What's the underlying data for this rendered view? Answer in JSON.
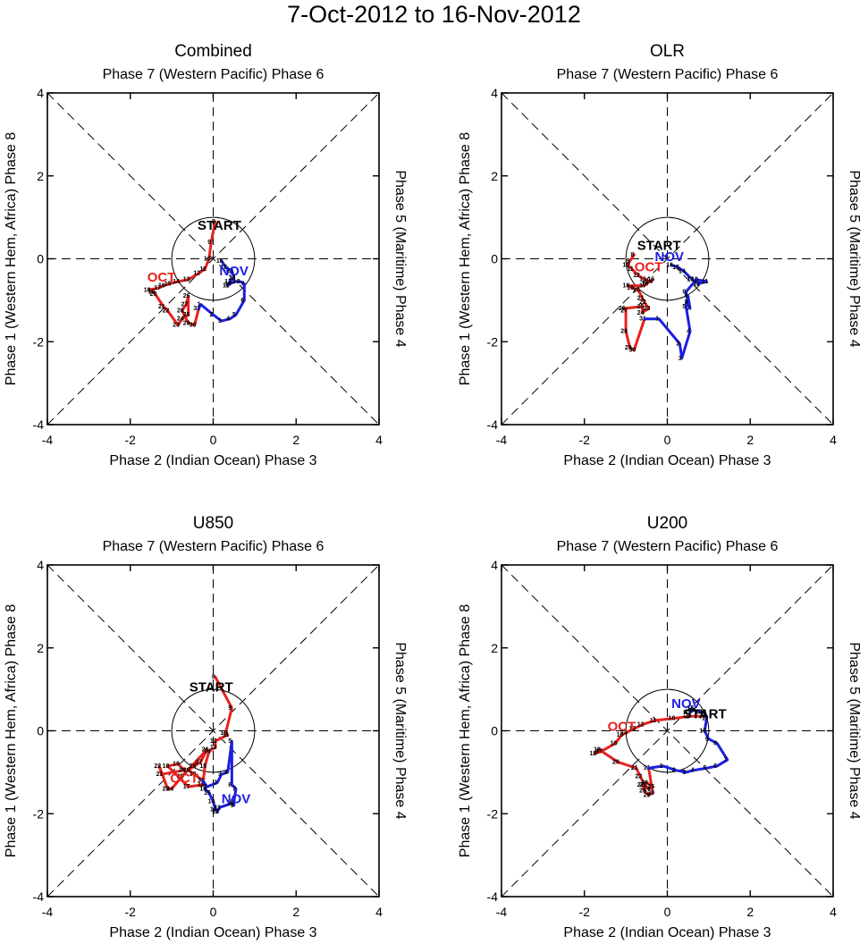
{
  "title": "7-Oct-2012 to 16-Nov-2012",
  "axes": {
    "top_label": "Phase 7 (Western Pacific) Phase 6",
    "bottom_label": "Phase 2 (Indian Ocean) Phase 3",
    "left_label": "Phase 1 (Western Hem, Africa) Phase 8",
    "right_label": "Phase 5 (Maritime) Phase 4",
    "ticks": [
      "-4",
      "-2",
      "0",
      "2",
      "4"
    ]
  },
  "colors": {
    "october": "#e8211e",
    "november": "#1d1fe0",
    "start": "#000000",
    "axis": "#000000"
  },
  "chart_data": [
    {
      "type": "line",
      "title": "Combined",
      "xlim": [
        -4,
        4
      ],
      "ylim": [
        -4,
        4
      ],
      "xlabel": "Phase 2 (Indian Ocean) Phase 3",
      "ylabel": "Phase 1 (Western Hem, Africa) Phase 8",
      "unit_circle_radius": 1,
      "start_label": "START",
      "start_pos": [
        0.15,
        0.7
      ],
      "oct_label": "OCT",
      "oct_label_pos": [
        -1.25,
        -0.55
      ],
      "nov_label": "NOV",
      "nov_label_pos": [
        0.5,
        -0.4
      ],
      "series": [
        {
          "name": "October",
          "color": "#e8211e",
          "days": [
            "8",
            "9",
            "10",
            "11",
            "12",
            "13",
            "14",
            "15",
            "16",
            "17",
            "18",
            "19",
            "20",
            "21",
            "22",
            "23",
            "24",
            "25",
            "26",
            "27",
            "28",
            "29",
            "30",
            "31"
          ],
          "x": [
            0.05,
            -0.05,
            -0.1,
            -0.2,
            -0.35,
            -0.6,
            -0.85,
            -1.05,
            -1.2,
            -1.3,
            -1.55,
            -1.45,
            -1.4,
            -1.2,
            -1.1,
            -0.85,
            -0.75,
            -0.6,
            -0.6,
            -0.65,
            -0.75,
            -0.6,
            -0.45,
            -0.35
          ],
          "y": [
            0.9,
            0.4,
            0.0,
            -0.25,
            -0.35,
            -0.5,
            -0.55,
            -0.6,
            -0.65,
            -0.7,
            -0.75,
            -0.8,
            -0.85,
            -1.15,
            -1.25,
            -1.6,
            -1.45,
            -1.35,
            -0.9,
            -1.1,
            -1.25,
            -1.55,
            -1.6,
            -1.2
          ]
        },
        {
          "name": "November",
          "color": "#1d1fe0",
          "days": [
            "1",
            "2",
            "3",
            "4",
            "5",
            "6",
            "7",
            "8",
            "9",
            "10",
            "11",
            "12",
            "13",
            "14",
            "15",
            "16"
          ],
          "x": [
            -0.3,
            0.0,
            0.2,
            0.4,
            0.55,
            0.75,
            0.75,
            0.65,
            0.55,
            0.4,
            0.35,
            0.4,
            0.5,
            0.45,
            0.3,
            0.2
          ],
          "y": [
            -1.1,
            -1.35,
            -1.5,
            -1.45,
            -1.35,
            -1.0,
            -0.6,
            -0.55,
            -0.55,
            -0.6,
            -0.65,
            -0.55,
            -0.45,
            -0.3,
            -0.2,
            -0.05
          ]
        }
      ]
    },
    {
      "type": "line",
      "title": "OLR",
      "xlim": [
        -4,
        4
      ],
      "ylim": [
        -4,
        4
      ],
      "xlabel": "Phase 2 (Indian Ocean) Phase 3",
      "ylabel": "Phase 1 (Western Hem, Africa) Phase 8",
      "unit_circle_radius": 1,
      "start_label": "START",
      "start_pos": [
        -0.2,
        0.22
      ],
      "oct_label": "OCT",
      "oct_label_pos": [
        -0.45,
        -0.3
      ],
      "nov_label": "NOV",
      "nov_label_pos": [
        0.05,
        -0.05
      ],
      "series": [
        {
          "name": "October",
          "color": "#e8211e",
          "days": [
            "8",
            "9",
            "10",
            "11",
            "12",
            "13",
            "14",
            "15",
            "16",
            "17",
            "18",
            "19",
            "20",
            "21",
            "22",
            "23",
            "24",
            "25",
            "26",
            "27",
            "28",
            "29",
            "30",
            "31"
          ],
          "x": [
            -0.8,
            -0.9,
            -0.95,
            -0.85,
            -0.7,
            -0.55,
            -0.4,
            -0.35,
            -0.5,
            -0.55,
            -0.95,
            -0.85,
            -0.7,
            -0.6,
            -0.55,
            -0.45,
            -0.6,
            -0.6,
            -1.05,
            -1.0,
            -1.0,
            -0.9,
            -0.8,
            -0.55
          ],
          "y": [
            0.1,
            -0.05,
            -0.15,
            -0.25,
            -0.4,
            -0.5,
            -0.55,
            -0.5,
            -0.6,
            -0.65,
            -0.65,
            -0.7,
            -0.75,
            -0.95,
            -1.05,
            -1.2,
            -1.3,
            -1.15,
            -1.2,
            -1.25,
            -1.75,
            -2.15,
            -2.2,
            -1.45
          ]
        },
        {
          "name": "November",
          "color": "#1d1fe0",
          "days": [
            "1",
            "2",
            "3",
            "4",
            "5",
            "6",
            "7",
            "8",
            "9",
            "10",
            "11",
            "12",
            "13",
            "14",
            "15",
            "16"
          ],
          "x": [
            -0.2,
            0.3,
            0.35,
            0.55,
            0.45,
            0.5,
            0.55,
            0.5,
            0.45,
            0.7,
            0.95,
            0.75,
            0.6,
            0.4,
            0.25,
            0.1
          ],
          "y": [
            -1.45,
            -2.05,
            -2.4,
            -1.75,
            -1.15,
            -0.9,
            -1.2,
            -1.05,
            -0.8,
            -0.5,
            -0.55,
            -0.6,
            -0.5,
            -0.3,
            -0.2,
            -0.15
          ]
        }
      ]
    },
    {
      "type": "line",
      "title": "U850",
      "xlim": [
        -4,
        4
      ],
      "ylim": [
        -4,
        4
      ],
      "xlabel": "Phase 2 (Indian Ocean) Phase 3",
      "ylabel": "Phase 1 (Western Hem, Africa) Phase 8",
      "unit_circle_radius": 1,
      "start_label": "START",
      "start_pos": [
        -0.05,
        0.95
      ],
      "oct_label": "OCT",
      "oct_label_pos": [
        -0.7,
        -1.25
      ],
      "nov_label": "NOV",
      "nov_label_pos": [
        0.55,
        -1.75
      ],
      "series": [
        {
          "name": "October",
          "color": "#e8211e",
          "days": [
            "8",
            "9",
            "10",
            "11",
            "12",
            "13",
            "14",
            "15",
            "16",
            "17",
            "18",
            "19",
            "20",
            "21",
            "22",
            "23",
            "24",
            "25",
            "26",
            "27",
            "28",
            "29",
            "30",
            "31"
          ],
          "x": [
            0.05,
            0.45,
            0.3,
            0.35,
            0.05,
            0.05,
            -0.1,
            -0.2,
            -0.25,
            -0.6,
            -1.1,
            -0.85,
            -0.7,
            -1.25,
            -1.3,
            -1.1,
            -1.0,
            -0.75,
            -0.15,
            -0.3,
            -0.45,
            -0.6,
            -0.45,
            -0.25
          ],
          "y": [
            1.3,
            0.55,
            -0.05,
            -0.1,
            -0.25,
            -0.4,
            -0.5,
            -0.85,
            -1.3,
            -1.35,
            -0.85,
            -0.8,
            -0.95,
            -1.05,
            -0.85,
            -1.4,
            -1.4,
            -1.1,
            -0.45,
            -0.75,
            -0.85,
            -0.95,
            -1.05,
            -1.2
          ]
        },
        {
          "name": "November",
          "color": "#1d1fe0",
          "days": [
            "1",
            "2",
            "3",
            "4",
            "5",
            "6",
            "7",
            "8",
            "9",
            "10",
            "11",
            "12",
            "13",
            "14",
            "15",
            "16"
          ],
          "x": [
            -0.15,
            0.1,
            0.2,
            0.35,
            0.45,
            0.45,
            0.55,
            0.5,
            0.5,
            0.45,
            0.15,
            0.1,
            0.05,
            0.0,
            -0.1,
            -0.2
          ],
          "y": [
            -1.35,
            -1.25,
            -1.05,
            -1.0,
            -0.25,
            -1.3,
            -1.4,
            -1.7,
            -1.8,
            -1.75,
            -1.85,
            -1.95,
            -1.9,
            -1.7,
            -1.5,
            -1.4
          ]
        }
      ]
    },
    {
      "type": "line",
      "title": "U200",
      "xlim": [
        -4,
        4
      ],
      "ylim": [
        -4,
        4
      ],
      "xlabel": "Phase 2 (Indian Ocean) Phase 3",
      "ylabel": "Phase 1 (Western Hem, Africa) Phase 8",
      "unit_circle_radius": 1,
      "start_label": "START",
      "start_pos": [
        0.9,
        0.3
      ],
      "oct_label": "OCT",
      "oct_label_pos": [
        -1.1,
        0.0
      ],
      "nov_label": "NOV",
      "nov_label_pos": [
        0.45,
        0.55
      ],
      "series": [
        {
          "name": "October",
          "color": "#e8211e",
          "days": [
            "8",
            "9",
            "10",
            "11",
            "12",
            "13",
            "14",
            "15",
            "16",
            "17",
            "18",
            "19",
            "20",
            "21",
            "22",
            "23",
            "24",
            "25",
            "26",
            "27",
            "28",
            "29",
            "30",
            "31"
          ],
          "x": [
            0.95,
            0.55,
            0.15,
            -0.3,
            -0.6,
            -0.8,
            -1.0,
            -1.1,
            -1.25,
            -1.6,
            -1.75,
            -1.65,
            -1.2,
            -0.75,
            -0.65,
            -0.55,
            -0.45,
            -0.35,
            -0.5,
            -0.6,
            -0.55,
            -0.45,
            -0.35,
            -0.45
          ],
          "y": [
            0.35,
            0.35,
            0.3,
            0.25,
            0.15,
            0.05,
            -0.05,
            -0.1,
            -0.3,
            -0.5,
            -0.55,
            -0.45,
            -0.75,
            -0.9,
            -1.1,
            -1.3,
            -1.4,
            -1.35,
            -1.25,
            -1.3,
            -1.45,
            -1.55,
            -1.5,
            -0.9
          ]
        },
        {
          "name": "November",
          "color": "#1d1fe0",
          "days": [
            "1",
            "2",
            "3",
            "4",
            "5",
            "6",
            "7",
            "8",
            "9",
            "10",
            "11",
            "12",
            "13",
            "14",
            "15",
            "16"
          ],
          "x": [
            -0.1,
            0.2,
            0.45,
            0.65,
            0.95,
            1.2,
            1.45,
            1.2,
            1.0,
            0.9,
            0.95,
            0.9,
            0.8,
            0.65,
            0.55,
            0.6
          ],
          "y": [
            -0.85,
            -0.95,
            -1.0,
            -0.95,
            -0.9,
            -0.85,
            -0.7,
            -0.3,
            -0.2,
            0.0,
            0.3,
            0.45,
            0.45,
            0.5,
            0.45,
            0.55
          ]
        }
      ]
    }
  ]
}
